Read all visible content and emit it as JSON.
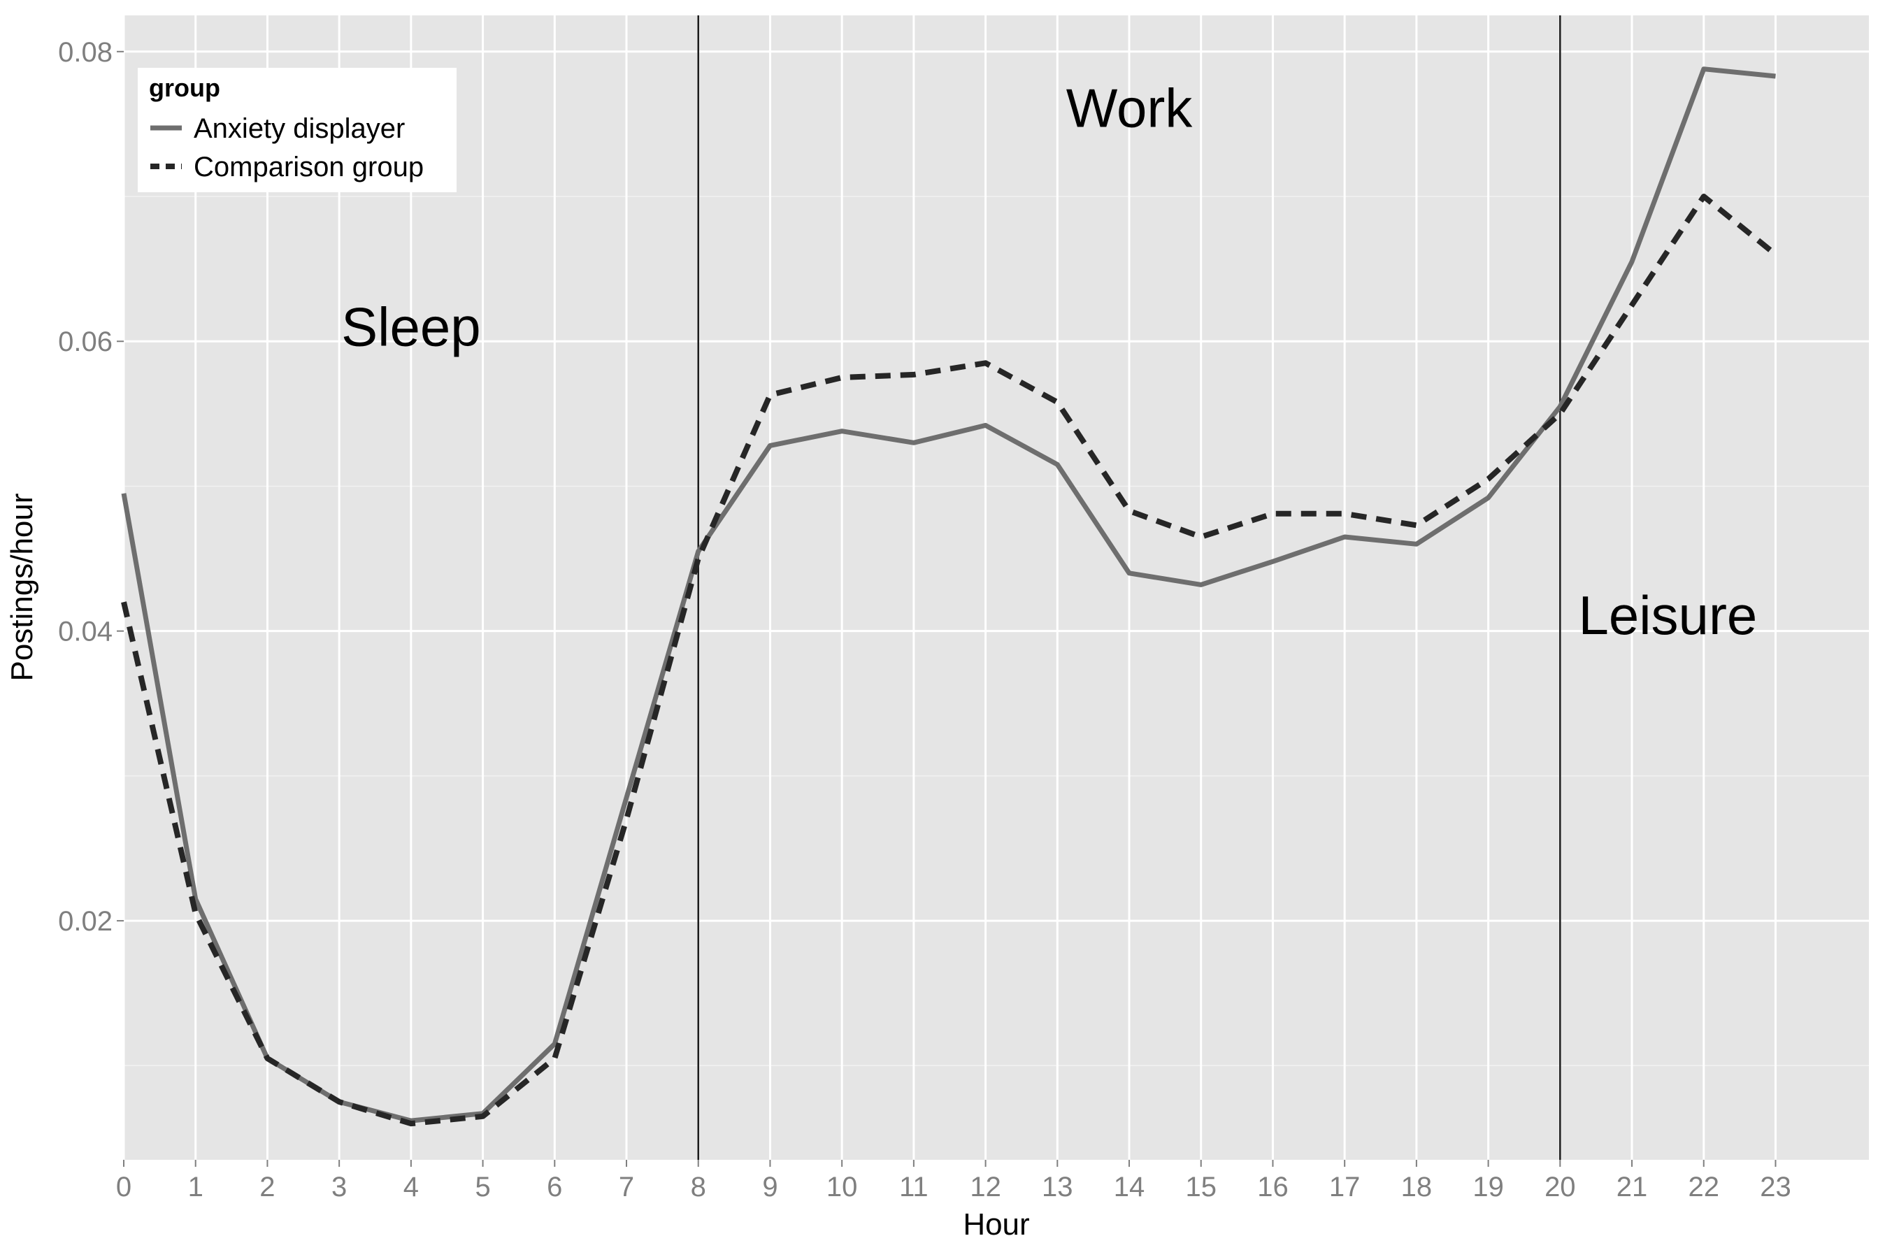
{
  "chart_data": {
    "type": "line",
    "title": "",
    "xlabel": "Hour",
    "ylabel": "Postings/hour",
    "xlim": [
      0,
      24.3
    ],
    "ylim": [
      0.0035,
      0.0825
    ],
    "x_ticks": [
      0,
      1,
      2,
      3,
      4,
      5,
      6,
      7,
      8,
      9,
      10,
      11,
      12,
      13,
      14,
      15,
      16,
      17,
      18,
      19,
      20,
      21,
      22,
      23
    ],
    "x_tick_labels": [
      "0",
      "1",
      "2",
      "3",
      "4",
      "5",
      "6",
      "7",
      "8",
      "9",
      "10",
      "11",
      "12",
      "13",
      "14",
      "15",
      "16",
      "17",
      "18",
      "19",
      "20",
      "21",
      "22",
      "23"
    ],
    "y_ticks": [
      0.02,
      0.04,
      0.06,
      0.08
    ],
    "y_tick_labels": [
      "0.02",
      "0.04",
      "0.06",
      "0.08"
    ],
    "grid": true,
    "background": "#e5e5e5",
    "legend": {
      "title": "group",
      "placement": "top-left"
    },
    "x": [
      0,
      1,
      2,
      3,
      4,
      5,
      6,
      7,
      8,
      9,
      10,
      11,
      12,
      13,
      14,
      15,
      16,
      17,
      18,
      19,
      20,
      21,
      22,
      23
    ],
    "series": [
      {
        "name": "Anxiety displayer",
        "style": "solid",
        "color": "#6e6e6e",
        "values": [
          0.0495,
          0.0215,
          0.0105,
          0.0075,
          0.0062,
          0.0067,
          0.0115,
          0.0285,
          0.0455,
          0.0528,
          0.0538,
          0.053,
          0.0542,
          0.0515,
          0.044,
          0.0432,
          0.0448,
          0.0465,
          0.046,
          0.0492,
          0.0555,
          0.0655,
          0.0788,
          0.0783
        ]
      },
      {
        "name": "Comparison group",
        "style": "dashed",
        "color": "#262626",
        "values": [
          0.042,
          0.0205,
          0.0105,
          0.0075,
          0.006,
          0.0065,
          0.0105,
          0.027,
          0.045,
          0.0563,
          0.0575,
          0.0577,
          0.0585,
          0.0558,
          0.0483,
          0.0465,
          0.0481,
          0.0481,
          0.0473,
          0.0505,
          0.055,
          0.0625,
          0.07,
          0.066
        ]
      }
    ],
    "vertical_lines": [
      8,
      20
    ],
    "annotations": [
      {
        "text": "Sleep",
        "x": 4.0,
        "y": 0.0597
      },
      {
        "text": "Work",
        "x": 14.0,
        "y": 0.0748
      },
      {
        "text": "Leisure",
        "x": 21.5,
        "y": 0.0398
      }
    ]
  }
}
